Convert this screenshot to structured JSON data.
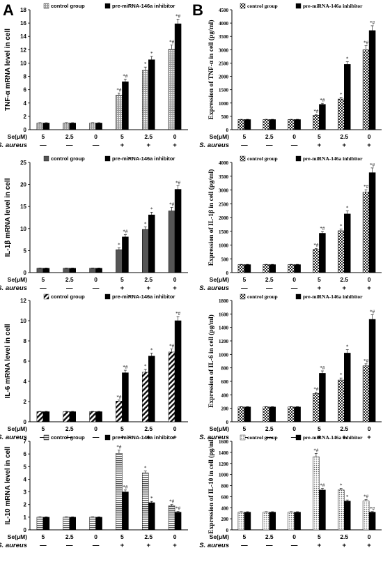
{
  "figure": {
    "panel_letters": [
      "A",
      "B"
    ],
    "condition_labels": {
      "se": "Se(μM)",
      "bacteria": "S. aureus",
      "se_values": [
        "5",
        "2.5",
        "0",
        "5",
        "2.5",
        "0"
      ],
      "bacteria_values": [
        "—",
        "—",
        "—",
        "+",
        "+",
        "+"
      ]
    }
  },
  "chart_data": [
    {
      "type": "bar",
      "panel": "A",
      "ylabel": "TNF-α mRNA level in cell",
      "ylim": [
        0,
        18
      ],
      "yticks": [
        0,
        2,
        4,
        6,
        8,
        10,
        12,
        14,
        16,
        18
      ],
      "series": [
        {
          "name": "control group",
          "pattern": "dots-gray",
          "values": [
            1,
            1,
            1,
            5.2,
            8.9,
            12.1
          ],
          "errors": [
            0.05,
            0.05,
            0.05,
            0.3,
            0.5,
            0.6
          ]
        },
        {
          "name": "pre-miRNA-146a inhibitor",
          "pattern": "solid-black",
          "values": [
            1,
            1,
            1,
            7.2,
            10.5,
            15.9
          ],
          "errors": [
            0.05,
            0.05,
            0.05,
            0.4,
            0.5,
            0.7
          ]
        }
      ],
      "significance": [
        null,
        null,
        null,
        [
          "*#",
          "*#"
        ],
        [
          "*",
          "*"
        ],
        [
          "*#",
          "*#"
        ]
      ],
      "legend_position": "top"
    },
    {
      "type": "bar",
      "panel": "A",
      "ylabel": "IL-1β mRNA level in cell",
      "ylim": [
        0,
        25
      ],
      "yticks": [
        0,
        5,
        10,
        15,
        20,
        25
      ],
      "series": [
        {
          "name": "control group",
          "pattern": "solid-gray",
          "values": [
            1,
            1,
            1,
            5.2,
            9.8,
            14
          ],
          "errors": [
            0.05,
            0.05,
            0.05,
            0.4,
            0.6,
            0.8
          ]
        },
        {
          "name": "pre-miRNA-146a inhibitor",
          "pattern": "solid-black",
          "values": [
            1,
            1,
            1,
            8.1,
            13.1,
            18.9
          ],
          "errors": [
            0.05,
            0.05,
            0.05,
            0.5,
            0.6,
            0.8
          ]
        }
      ],
      "significance": [
        null,
        null,
        null,
        [
          "*",
          "*#"
        ],
        [
          "*",
          "*"
        ],
        [
          "*#",
          "*#"
        ]
      ],
      "legend_position": "top"
    },
    {
      "type": "bar",
      "panel": "A",
      "ylabel": "IL-6 mRNA level in cell",
      "ylim": [
        0,
        12
      ],
      "yticks": [
        0,
        2,
        4,
        6,
        8,
        10,
        12
      ],
      "series": [
        {
          "name": "control group",
          "pattern": "diagonal-stripes",
          "values": [
            1,
            1,
            1,
            2.05,
            4.9,
            6.9
          ],
          "errors": [
            0.03,
            0.03,
            0.03,
            0.1,
            0.3,
            0.3
          ]
        },
        {
          "name": "pre-miRNA-146a inhibitor",
          "pattern": "solid-black",
          "values": [
            1,
            1,
            1,
            4.85,
            6.5,
            10
          ],
          "errors": [
            0.03,
            0.03,
            0.03,
            0.25,
            0.3,
            0.4
          ]
        }
      ],
      "significance": [
        null,
        null,
        null,
        [
          "*#",
          "*#"
        ],
        [
          "*",
          "*"
        ],
        [
          "*#",
          "*#"
        ]
      ],
      "legend_position": "top"
    },
    {
      "type": "bar",
      "panel": "A",
      "ylabel": "IL-10 mRNA level in cell",
      "ylim": [
        0,
        7
      ],
      "yticks": [
        0,
        1,
        2,
        3,
        4,
        5,
        6,
        7
      ],
      "series": [
        {
          "name": "control group",
          "pattern": "horizontal-stripes",
          "values": [
            1,
            1,
            1,
            6.05,
            4.5,
            1.9
          ],
          "errors": [
            0.03,
            0.03,
            0.03,
            0.25,
            0.15,
            0.1
          ]
        },
        {
          "name": "pre-miRNA-146a inhibitor",
          "pattern": "solid-black",
          "values": [
            1,
            1,
            1,
            3,
            2.15,
            1.4
          ],
          "errors": [
            0.03,
            0.03,
            0.03,
            0.15,
            0.1,
            0.05
          ]
        }
      ],
      "significance": [
        null,
        null,
        null,
        [
          "*#",
          "*#"
        ],
        [
          "*",
          "*"
        ],
        [
          "*#",
          "*#"
        ]
      ],
      "legend_position": "top"
    },
    {
      "type": "bar",
      "panel": "B",
      "ylabel": "Expression of TNF-α in cell (pg/ml)",
      "ylim": [
        0,
        4500
      ],
      "yticks": [
        0,
        500,
        1000,
        1500,
        2000,
        2500,
        3000,
        3500,
        4000,
        4500
      ],
      "series": [
        {
          "name": "control group",
          "pattern": "checker",
          "values": [
            380,
            380,
            380,
            540,
            1150,
            3000
          ],
          "errors": [
            10,
            10,
            10,
            30,
            60,
            150
          ]
        },
        {
          "name": "pre-miRNA-146a inhibitor",
          "pattern": "solid-black",
          "values": [
            380,
            380,
            380,
            950,
            2450,
            3720
          ],
          "errors": [
            10,
            10,
            10,
            40,
            100,
            180
          ]
        }
      ],
      "significance": [
        null,
        null,
        null,
        [
          "*#",
          "*#"
        ],
        [
          "*",
          "*"
        ],
        [
          "*#",
          "*#"
        ]
      ],
      "legend_position": "top"
    },
    {
      "type": "bar",
      "panel": "B",
      "ylabel": "Expression of IL-1β in cell (pg/ml)",
      "ylim": [
        0,
        4000
      ],
      "yticks": [
        0,
        500,
        1000,
        1500,
        2000,
        2500,
        3000,
        3500,
        4000
      ],
      "series": [
        {
          "name": "control group",
          "pattern": "checker",
          "values": [
            290,
            290,
            290,
            840,
            1520,
            2920
          ],
          "errors": [
            10,
            10,
            10,
            40,
            60,
            90
          ]
        },
        {
          "name": "pre-miRNA-146a inhibitor",
          "pattern": "solid-black",
          "values": [
            290,
            290,
            290,
            1430,
            2130,
            3630
          ],
          "errors": [
            10,
            10,
            10,
            60,
            110,
            170
          ]
        }
      ],
      "significance": [
        null,
        null,
        null,
        [
          "*#",
          "*#"
        ],
        [
          "*",
          "*"
        ],
        [
          "*#",
          "*#"
        ]
      ],
      "legend_position": "top"
    },
    {
      "type": "bar",
      "panel": "B",
      "ylabel": "Expression of IL-6 in cell (pg/ml)",
      "ylim": [
        0,
        1800
      ],
      "yticks": [
        0,
        200,
        400,
        600,
        800,
        1000,
        1200,
        1400,
        1600,
        1800
      ],
      "series": [
        {
          "name": "control group",
          "pattern": "checker",
          "values": [
            220,
            220,
            220,
            420,
            620,
            830
          ],
          "errors": [
            5,
            5,
            5,
            20,
            30,
            30
          ]
        },
        {
          "name": "pre-miRNA-146a inhibitor",
          "pattern": "solid-black",
          "values": [
            220,
            220,
            220,
            720,
            1020,
            1520
          ],
          "errors": [
            5,
            5,
            5,
            35,
            50,
            70
          ]
        }
      ],
      "significance": [
        null,
        null,
        null,
        [
          "*#",
          "*#"
        ],
        [
          "*",
          "*"
        ],
        [
          "*#",
          "*#"
        ]
      ],
      "legend_position": "top"
    },
    {
      "type": "bar",
      "panel": "B",
      "ylabel": "Expression of IL-10 in cell (pg/ml)",
      "ylim": [
        0,
        1600
      ],
      "yticks": [
        0,
        200,
        400,
        600,
        800,
        1000,
        1200,
        1400,
        1600
      ],
      "series": [
        {
          "name": "control group",
          "pattern": "dots-light",
          "values": [
            320,
            320,
            320,
            1320,
            720,
            520
          ],
          "errors": [
            8,
            8,
            8,
            60,
            30,
            25
          ]
        },
        {
          "name": "pre-miRNA-146a inhibitor",
          "pattern": "solid-black",
          "values": [
            320,
            320,
            320,
            720,
            520,
            320
          ],
          "errors": [
            8,
            8,
            8,
            30,
            20,
            10
          ]
        }
      ],
      "significance": [
        null,
        null,
        null,
        [
          "*#",
          "*#"
        ],
        [
          "*",
          "*"
        ],
        [
          "*#",
          "*#"
        ]
      ],
      "legend_position": "top"
    }
  ]
}
